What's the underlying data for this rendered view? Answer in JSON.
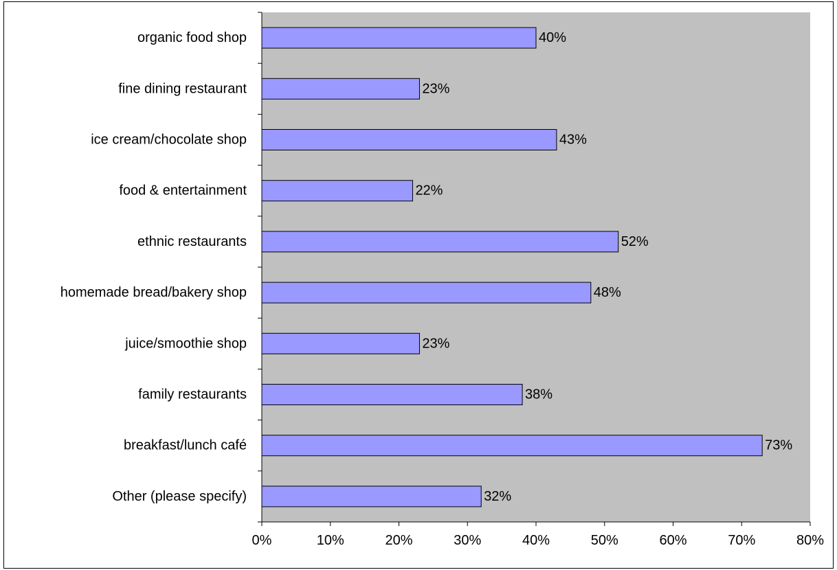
{
  "chart_data": {
    "type": "bar",
    "orientation": "horizontal",
    "categories": [
      "organic food shop",
      "fine dining restaurant",
      "ice cream/chocolate shop",
      "food & entertainment ",
      "ethnic restaurants",
      "homemade bread/bakery shop",
      "juice/smoothie shop ",
      "family restaurants",
      "breakfast/lunch café",
      "Other (please specify)"
    ],
    "values": [
      40,
      23,
      43,
      22,
      52,
      48,
      23,
      38,
      73,
      32
    ],
    "data_labels": [
      "40%",
      "23%",
      "43%",
      "22%",
      "52%",
      "48%",
      "23%",
      "38%",
      "73%",
      "32%"
    ],
    "xlim": [
      0,
      80
    ],
    "x_ticks": [
      0,
      10,
      20,
      30,
      40,
      50,
      60,
      70,
      80
    ],
    "x_tick_labels": [
      "0%",
      "10%",
      "20%",
      "30%",
      "40%",
      "50%",
      "60%",
      "70%",
      "80%"
    ],
    "title": "",
    "xlabel": "",
    "ylabel": "",
    "grid": false,
    "legend": "none",
    "colors": {
      "plot_area": "#c0c0c0",
      "bar_fill": "#9999ff",
      "bar_stroke": "#000000",
      "axis": "#000000"
    }
  }
}
